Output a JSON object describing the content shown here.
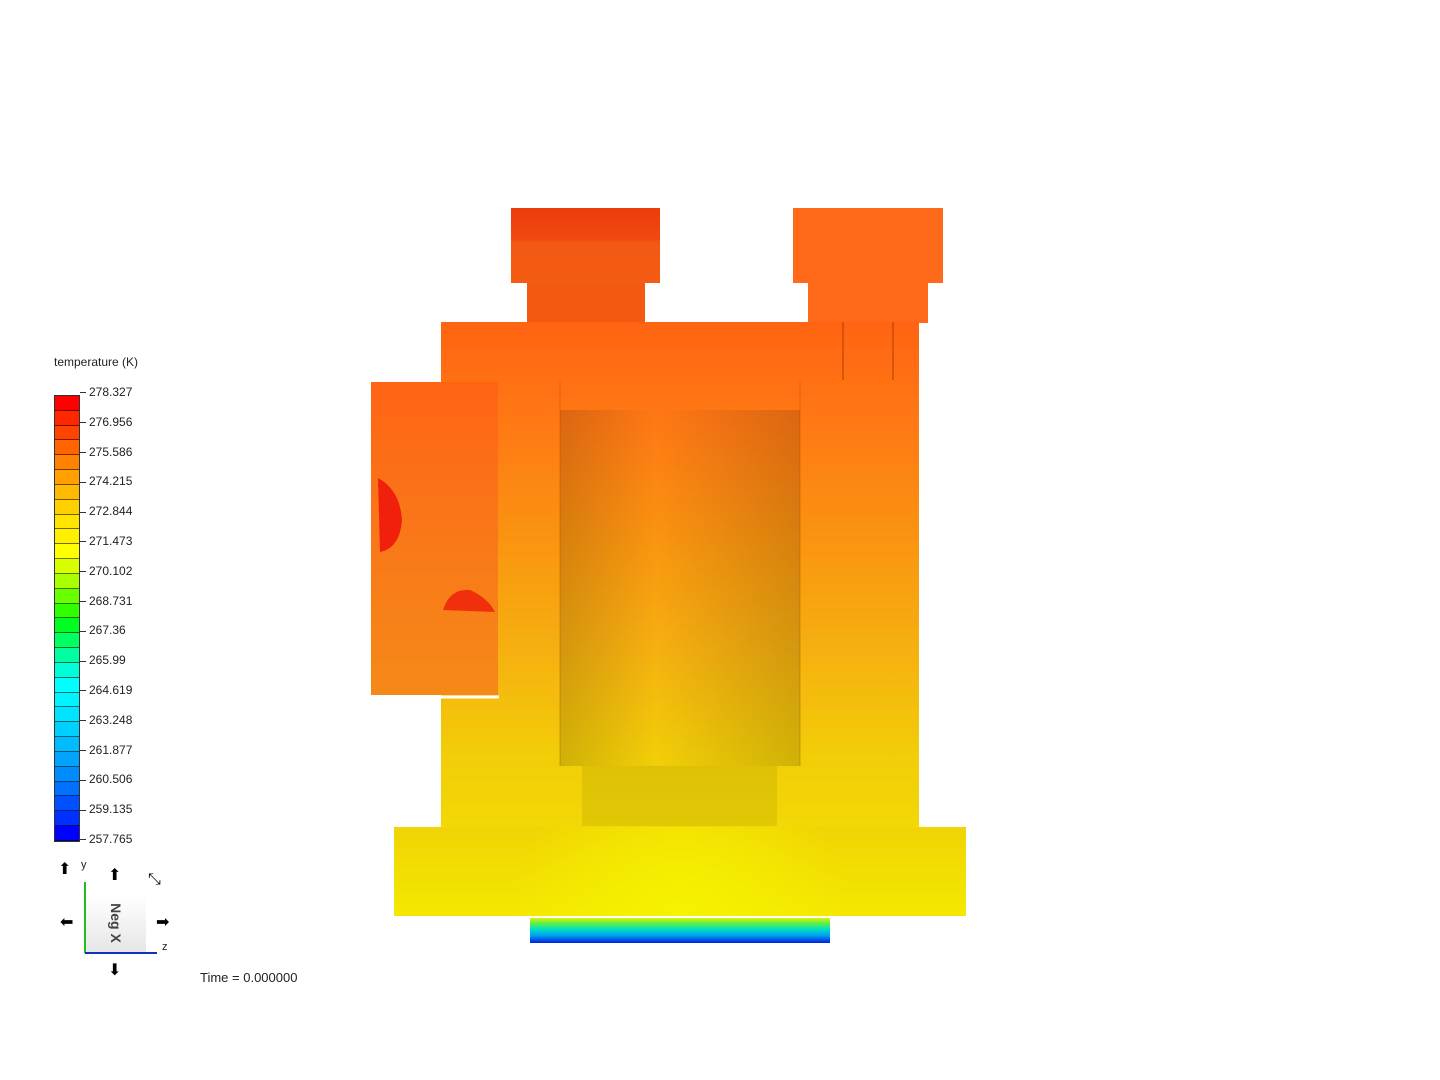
{
  "legend": {
    "title": "temperature (K)",
    "ticks": [
      "278.327",
      "276.956",
      "275.586",
      "274.215",
      "272.844",
      "271.473",
      "270.102",
      "268.731",
      "267.36",
      "265.99",
      "264.619",
      "263.248",
      "261.877",
      "260.506",
      "259.135",
      "257.765"
    ],
    "band_colors": [
      "#FF0000",
      "#FF2600",
      "#FF4400",
      "#FF6400",
      "#FF8200",
      "#FFA000",
      "#FFBA00",
      "#FFD000",
      "#FFE400",
      "#FFF000",
      "#FFFF00",
      "#D8FF00",
      "#A8FF00",
      "#68FF00",
      "#30FF00",
      "#00FF20",
      "#00FF60",
      "#00FFA0",
      "#00FFD8",
      "#00FFFF",
      "#00F4FF",
      "#00E4FF",
      "#00D0FF",
      "#00BCFF",
      "#00A4FF",
      "#008CFF",
      "#0070FF",
      "#0050FF",
      "#0030FF",
      "#0000FF"
    ]
  },
  "orientation": {
    "view_label": "Neg X",
    "axis_y": "y",
    "axis_z": "z",
    "y_axis_color": "#22BB22",
    "z_axis_color": "#1030C0"
  },
  "time_label": "Time = 0.000000"
}
